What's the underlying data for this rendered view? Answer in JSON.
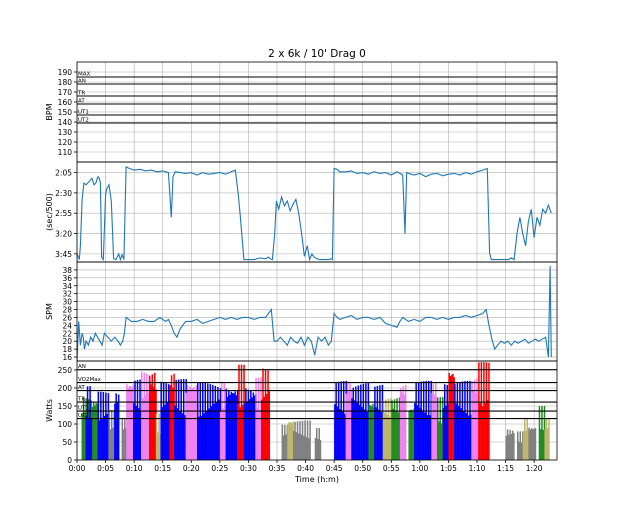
{
  "figure": {
    "title": "2 x 6k / 10' Drag 0",
    "xlabel": "Time (h:m)"
  },
  "colors": {
    "line": "#1f77b4",
    "grid": "#b0b0b0",
    "zone_line": "#000000",
    "power": {
      "AN": "#ff0000",
      "VO2Max": "#ee82ee",
      "AT": "#0000ff",
      "TR": "#228b22",
      "UT1": "#bdb76b",
      "UT2": "#808080"
    }
  },
  "chart_data": [
    {
      "id": "hr",
      "type": "line",
      "ylabel": "BPM",
      "ylim": [
        100,
        200
      ],
      "yticks": [
        110,
        120,
        130,
        140,
        150,
        160,
        170,
        180,
        190
      ],
      "zones": [
        {
          "label": "MAX",
          "value": 185
        },
        {
          "label": "AN",
          "value": 178
        },
        {
          "label": "TR",
          "value": 166
        },
        {
          "label": "AT",
          "value": 158
        },
        {
          "label": "UT1",
          "value": 147
        },
        {
          "label": "UT2",
          "value": 139
        }
      ],
      "series": []
    },
    {
      "id": "pace",
      "type": "line",
      "ylabel": "(sec/500)",
      "ylim": [
        235,
        112
      ],
      "inverted": true,
      "yticks": [
        125,
        150,
        175,
        200,
        225
      ],
      "ytick_labels": [
        "2:05",
        "2:30",
        "2:55",
        "3:20",
        "3:45"
      ],
      "series": [
        {
          "x": [
            0,
            0.4,
            0.6,
            0.9,
            1.2,
            1.6,
            2.0,
            2.6,
            3.0,
            3.3,
            3.5,
            3.7,
            3.9,
            4.1,
            4.3,
            4.6,
            5.0,
            5.2,
            5.6,
            6.0,
            6.4,
            6.8,
            7.3,
            7.6,
            7.9,
            8.2,
            8.6,
            9.2,
            10,
            11,
            12,
            13,
            14,
            15,
            16,
            16.5,
            16.8,
            17.2,
            18,
            19,
            20,
            21,
            22,
            23,
            24,
            25,
            26,
            27,
            27.7,
            28.2,
            28.6,
            29.2,
            30,
            31,
            32,
            33,
            33.5,
            33.8,
            34.2,
            34.6,
            34.9,
            35.3,
            35.8,
            36.3,
            36.8,
            37.3,
            37.8,
            38.3,
            38.8,
            39.3,
            39.8,
            40.3,
            40.7,
            41.1,
            41.5,
            42,
            42.5,
            43,
            43.5,
            44,
            44.4,
            44.7,
            45,
            45.5,
            46,
            47,
            48,
            49,
            50,
            51,
            52,
            53,
            54,
            55,
            56,
            57,
            57.4,
            57.7,
            58,
            58.5,
            59,
            60,
            61,
            62,
            63,
            64,
            65,
            66,
            67,
            68,
            69,
            70,
            71,
            71.8,
            72.2,
            72.5,
            73,
            73.5,
            74,
            74.5,
            75,
            75.5,
            76,
            76.5,
            77,
            77.5,
            78,
            78.5,
            79,
            79.5,
            80,
            80.5,
            81,
            81.5,
            82,
            82.5,
            83
          ],
          "y": [
            225,
            232,
            215,
            158,
            138,
            140,
            137,
            132,
            140,
            138,
            133,
            130,
            132,
            138,
            229,
            232,
            152,
            145,
            140,
            160,
            231,
            232,
            225,
            232,
            226,
            232,
            118,
            120,
            122,
            121,
            123,
            122,
            124,
            123,
            125,
            180,
            130,
            124,
            125,
            126,
            125,
            128,
            125,
            127,
            126,
            125,
            127,
            124,
            122,
            150,
            180,
            232,
            232,
            232,
            230,
            231,
            229,
            231,
            232,
            200,
            160,
            170,
            155,
            166,
            160,
            172,
            164,
            158,
            175,
            200,
            228,
            215,
            232,
            225,
            229,
            231,
            232,
            232,
            232,
            232,
            231,
            232,
            120,
            121,
            124,
            124,
            123,
            126,
            125,
            127,
            124,
            126,
            125,
            128,
            124,
            128,
            200,
            125,
            126,
            127,
            128,
            126,
            130,
            127,
            126,
            129,
            127,
            126,
            128,
            125,
            127,
            124,
            122,
            120,
            224,
            232,
            232,
            232,
            232,
            232,
            232,
            232,
            230,
            232,
            200,
            180,
            200,
            215,
            185,
            170,
            205,
            180,
            190,
            170,
            175,
            165,
            175
          ]
        }
      ]
    },
    {
      "id": "spm",
      "type": "line",
      "ylabel": "SPM",
      "ylim": [
        15,
        40
      ],
      "yticks": [
        16,
        18,
        20,
        22,
        24,
        26,
        28,
        30,
        32,
        34,
        36,
        38
      ],
      "series": [
        {
          "x": [
            0,
            0.3,
            0.6,
            0.9,
            1.1,
            1.3,
            1.6,
            2.0,
            2.4,
            2.8,
            3.2,
            3.6,
            4.0,
            4.4,
            4.8,
            5.4,
            6,
            6.6,
            7.2,
            7.6,
            8,
            8.3,
            8.6,
            9.5,
            10.5,
            11.5,
            12.5,
            13.5,
            14.5,
            15.5,
            16,
            16.5,
            17,
            17.5,
            18,
            19,
            20,
            21,
            22,
            23,
            24,
            25,
            26,
            27,
            28,
            29,
            30,
            31,
            32,
            33,
            34,
            34.5,
            35,
            35.6,
            36.2,
            36.8,
            37.4,
            38,
            38.6,
            39.2,
            39.8,
            40.4,
            41,
            41.6,
            42.2,
            42.8,
            43.4,
            44,
            44.5,
            45,
            45.5,
            46,
            47,
            48,
            49,
            50,
            51,
            52,
            53,
            54,
            55,
            56,
            56.5,
            57,
            58,
            59,
            60,
            61,
            62,
            63,
            64,
            65,
            66,
            67,
            68,
            69,
            70,
            71,
            71.6,
            72.1,
            72.6,
            73.1,
            73.6,
            74.2,
            74.8,
            75.4,
            76,
            76.6,
            77.2,
            77.8,
            78.4,
            79,
            79.6,
            80.2,
            80.8,
            81.4,
            82,
            82.5,
            82.8,
            83
          ],
          "y": [
            15,
            25,
            19,
            22,
            21,
            18,
            20,
            19,
            21,
            20,
            22,
            21,
            20,
            19,
            22,
            21,
            20,
            21,
            20,
            19,
            20,
            22,
            26,
            25,
            25,
            25.5,
            25,
            25,
            26,
            25,
            25.5,
            24,
            22,
            21,
            23,
            25,
            25,
            25.5,
            24.5,
            25,
            25.5,
            26,
            25.5,
            26,
            25.5,
            26,
            26,
            25.5,
            26,
            26,
            28,
            20,
            20,
            21,
            20,
            19,
            21,
            20,
            19.5,
            21,
            19,
            21,
            20,
            16.5,
            21,
            20,
            21,
            19,
            20,
            27,
            26,
            25.5,
            26,
            26.5,
            25.5,
            26,
            26,
            25.5,
            26,
            24.5,
            24,
            23.5,
            25,
            26,
            25,
            25.5,
            25,
            26,
            26,
            25.5,
            26,
            25.5,
            26,
            26,
            26.5,
            26,
            26.5,
            27,
            28,
            24,
            20.5,
            18,
            19,
            20,
            19.5,
            20,
            19,
            20,
            19.5,
            20,
            20.5,
            19.5,
            20,
            20.5,
            20,
            20.5,
            21,
            16,
            39,
            16
          ]
        }
      ]
    },
    {
      "id": "watts",
      "type": "bar",
      "ylabel": "Watts",
      "ylim": [
        0,
        275
      ],
      "yticks": [
        0,
        50,
        100,
        150,
        200,
        250
      ],
      "zones": [
        {
          "label": "AN",
          "value": 251
        },
        {
          "label": "VO2Max",
          "value": 215
        },
        {
          "label": "AT",
          "value": 193
        },
        {
          "label": "TR",
          "value": 161
        },
        {
          "label": "UT1",
          "value": 136
        },
        {
          "label": "UT2",
          "value": 115
        }
      ],
      "segments": [
        {
          "start": 0.8,
          "end": 3.6,
          "zone": "TR",
          "peak": 180
        },
        {
          "start": 1.5,
          "end": 2.6,
          "zone": "AT",
          "peak": 205
        },
        {
          "start": 3.6,
          "end": 5.5,
          "zone": "AT",
          "peak": 190
        },
        {
          "start": 5.5,
          "end": 6.5,
          "zone": "UT2",
          "peak": 140
        },
        {
          "start": 6.5,
          "end": 7.3,
          "zone": "AT",
          "peak": 200
        },
        {
          "start": 7.8,
          "end": 8.6,
          "zone": "UT2",
          "peak": 120
        },
        {
          "start": 8.6,
          "end": 9.8,
          "zone": "VO2Max",
          "peak": 235
        },
        {
          "start": 9.8,
          "end": 11.2,
          "zone": "AT",
          "peak": 225
        },
        {
          "start": 11.2,
          "end": 12.6,
          "zone": "VO2Max",
          "peak": 250
        },
        {
          "start": 12.6,
          "end": 13.8,
          "zone": "AN",
          "peak": 258
        },
        {
          "start": 13.8,
          "end": 14.6,
          "zone": "UT1",
          "peak": 130
        },
        {
          "start": 14.6,
          "end": 16.2,
          "zone": "AT",
          "peak": 220
        },
        {
          "start": 16.2,
          "end": 17.0,
          "zone": "AN",
          "peak": 255
        },
        {
          "start": 17.0,
          "end": 19.0,
          "zone": "AT",
          "peak": 225
        },
        {
          "start": 19.0,
          "end": 21.0,
          "zone": "VO2Max",
          "peak": 230
        },
        {
          "start": 21.0,
          "end": 25.0,
          "zone": "AT",
          "peak": 215
        },
        {
          "start": 25.0,
          "end": 26.0,
          "zone": "VO2Max",
          "peak": 220
        },
        {
          "start": 26.0,
          "end": 28.0,
          "zone": "AT",
          "peak": 215
        },
        {
          "start": 28.0,
          "end": 29.2,
          "zone": "AN",
          "peak": 265
        },
        {
          "start": 29.2,
          "end": 31.2,
          "zone": "AT",
          "peak": 210
        },
        {
          "start": 31.2,
          "end": 32.2,
          "zone": "VO2Max",
          "peak": 230
        },
        {
          "start": 32.2,
          "end": 33.6,
          "zone": "AN",
          "peak": 258
        },
        {
          "start": 35.8,
          "end": 36.8,
          "zone": "UT2",
          "peak": 100
        },
        {
          "start": 36.8,
          "end": 37.8,
          "zone": "UT1",
          "peak": 120
        },
        {
          "start": 37.8,
          "end": 40.8,
          "zone": "UT2",
          "peak": 110
        },
        {
          "start": 41.6,
          "end": 42.6,
          "zone": "UT2",
          "peak": 90
        },
        {
          "start": 45.0,
          "end": 47.0,
          "zone": "AT",
          "peak": 220
        },
        {
          "start": 47.0,
          "end": 48.0,
          "zone": "VO2Max",
          "peak": 235
        },
        {
          "start": 48.0,
          "end": 51.0,
          "zone": "AT",
          "peak": 215
        },
        {
          "start": 51.0,
          "end": 52.0,
          "zone": "TR",
          "peak": 175
        },
        {
          "start": 52.0,
          "end": 53.5,
          "zone": "AT",
          "peak": 210
        },
        {
          "start": 53.5,
          "end": 55.0,
          "zone": "UT1",
          "peak": 175
        },
        {
          "start": 55.0,
          "end": 56.5,
          "zone": "TR",
          "peak": 180
        },
        {
          "start": 56.5,
          "end": 57.5,
          "zone": "VO2Max",
          "peak": 225
        },
        {
          "start": 58.0,
          "end": 59.0,
          "zone": "TR",
          "peak": 160
        },
        {
          "start": 59.0,
          "end": 62.0,
          "zone": "AT",
          "peak": 220
        },
        {
          "start": 62.0,
          "end": 63.0,
          "zone": "VO2Max",
          "peak": 230
        },
        {
          "start": 63.0,
          "end": 64.0,
          "zone": "TR",
          "peak": 175
        },
        {
          "start": 64.0,
          "end": 65.0,
          "zone": "AT",
          "peak": 215
        },
        {
          "start": 65.0,
          "end": 66.0,
          "zone": "AN",
          "peak": 272
        },
        {
          "start": 66.0,
          "end": 69.0,
          "zone": "AT",
          "peak": 220
        },
        {
          "start": 69.0,
          "end": 70.2,
          "zone": "VO2Max",
          "peak": 240
        },
        {
          "start": 70.2,
          "end": 72.0,
          "zone": "AN",
          "peak": 272
        },
        {
          "start": 75.0,
          "end": 76.5,
          "zone": "UT2",
          "peak": 90
        },
        {
          "start": 77.0,
          "end": 78.0,
          "zone": "UT2",
          "peak": 80
        },
        {
          "start": 78.0,
          "end": 79.0,
          "zone": "UT1",
          "peak": 120
        },
        {
          "start": 79.0,
          "end": 80.2,
          "zone": "UT2",
          "peak": 100
        },
        {
          "start": 80.8,
          "end": 81.8,
          "zone": "TR",
          "peak": 150
        },
        {
          "start": 81.8,
          "end": 82.6,
          "zone": "UT1",
          "peak": 120
        }
      ]
    }
  ],
  "time_axis": {
    "range": [
      0,
      84
    ],
    "ticks": [
      0,
      5,
      10,
      15,
      20,
      25,
      30,
      35,
      40,
      45,
      50,
      55,
      60,
      65,
      70,
      75,
      80
    ],
    "tick_labels": [
      "0:00",
      "0:05",
      "0:10",
      "0:15",
      "0:20",
      "0:25",
      "0:30",
      "0:35",
      "0:40",
      "0:45",
      "0:50",
      "0:55",
      "1:00",
      "1:05",
      "1:10",
      "1:15",
      "1:20"
    ]
  }
}
